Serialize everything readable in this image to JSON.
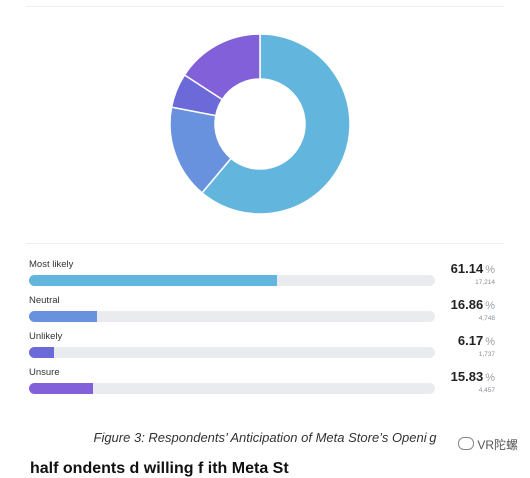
{
  "chart_data": {
    "type": "pie",
    "donut": true,
    "categories": [
      "Most likely",
      "Neutral",
      "Unlikely",
      "Unsure"
    ],
    "values": [
      61.14,
      16.86,
      6.17,
      15.83
    ],
    "counts": [
      "17,214",
      "4,748",
      "1,737",
      "4,457"
    ],
    "percent_symbol": "%",
    "colors": [
      "#62b6dd",
      "#6892de",
      "#6b6ad8",
      "#8160d9"
    ]
  },
  "caption": "Figure 3: Respondents’   Anticipation of Meta Store’s Openi g",
  "watermark": "VR陀螺",
  "cut_text": "  half      ondents     d  willing   f           ith  Meta  St"
}
